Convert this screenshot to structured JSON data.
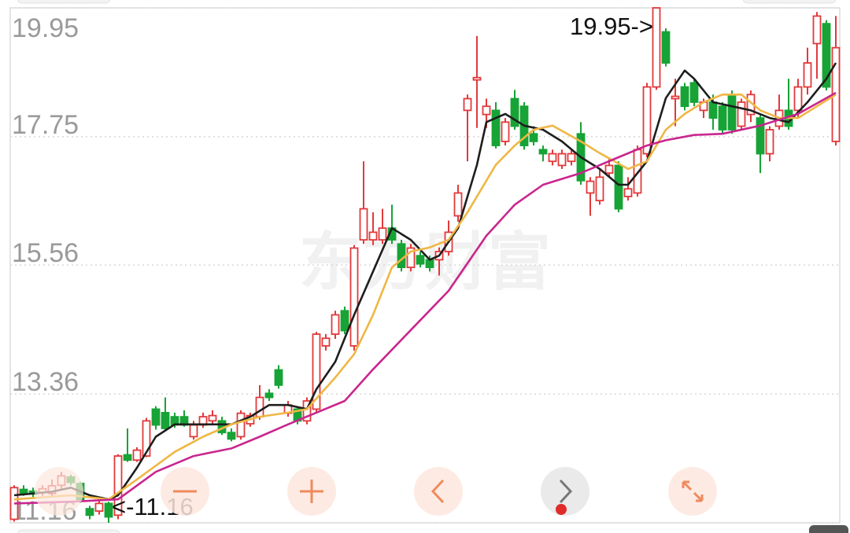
{
  "chart_data": {
    "type": "candlestick",
    "watermark": "东方财富",
    "ylim": [
      11.16,
      19.95
    ],
    "yticks": [
      19.95,
      17.75,
      15.56,
      13.36,
      11.16
    ],
    "grid": true,
    "up_color": "#e2393b",
    "down_color": "#17a336",
    "ohlc": [
      [
        11.22,
        11.8,
        11.18,
        11.76
      ],
      [
        11.73,
        11.8,
        11.62,
        11.66
      ],
      [
        11.7,
        11.76,
        11.6,
        11.65
      ],
      [
        11.68,
        11.8,
        11.62,
        11.74
      ],
      [
        11.66,
        11.9,
        11.6,
        11.79
      ],
      [
        11.8,
        12.03,
        11.74,
        11.96
      ],
      [
        11.94,
        11.98,
        11.8,
        11.85
      ],
      [
        11.83,
        11.86,
        11.5,
        11.56
      ],
      [
        11.4,
        11.45,
        11.22,
        11.29
      ],
      [
        11.36,
        11.56,
        11.3,
        11.49
      ],
      [
        11.49,
        11.52,
        11.16,
        11.26
      ],
      [
        11.29,
        12.33,
        11.22,
        12.3
      ],
      [
        12.32,
        12.77,
        12.2,
        12.23
      ],
      [
        12.23,
        12.45,
        12.2,
        12.4
      ],
      [
        12.3,
        12.95,
        12.28,
        12.9
      ],
      [
        13.1,
        13.15,
        12.75,
        12.83
      ],
      [
        13.04,
        13.3,
        12.72,
        12.77
      ],
      [
        12.97,
        13.04,
        12.78,
        12.83
      ],
      [
        12.97,
        13.08,
        12.8,
        12.83
      ],
      [
        12.63,
        12.9,
        12.58,
        12.83
      ],
      [
        12.83,
        13.04,
        12.78,
        12.97
      ],
      [
        12.9,
        13.08,
        12.85,
        12.99
      ],
      [
        12.9,
        12.97,
        12.66,
        12.7
      ],
      [
        12.7,
        12.77,
        12.55,
        12.59
      ],
      [
        12.63,
        13.08,
        12.58,
        13.03
      ],
      [
        12.85,
        13.04,
        12.8,
        12.99
      ],
      [
        12.97,
        13.51,
        12.92,
        13.3
      ],
      [
        13.37,
        13.44,
        13.24,
        13.3
      ],
      [
        13.77,
        13.85,
        13.45,
        13.51
      ],
      [
        13.03,
        13.24,
        12.97,
        13.17
      ],
      [
        13.1,
        13.15,
        12.84,
        12.9
      ],
      [
        12.9,
        13.3,
        12.84,
        13.24
      ],
      [
        13.1,
        14.42,
        13.04,
        14.38
      ],
      [
        14.18,
        14.38,
        14.1,
        14.31
      ],
      [
        14.38,
        14.78,
        14.3,
        14.71
      ],
      [
        14.78,
        14.85,
        14.38,
        14.44
      ],
      [
        14.18,
        15.9,
        14.1,
        15.85
      ],
      [
        15.99,
        17.33,
        15.92,
        16.52
      ],
      [
        15.99,
        16.46,
        15.9,
        16.12
      ],
      [
        15.99,
        16.52,
        15.92,
        16.19
      ],
      [
        16.19,
        16.59,
        15.92,
        15.99
      ],
      [
        15.92,
        15.99,
        15.45,
        15.52
      ],
      [
        15.52,
        15.92,
        15.45,
        15.85
      ],
      [
        15.72,
        15.79,
        15.52,
        15.58
      ],
      [
        15.65,
        15.72,
        15.45,
        15.52
      ],
      [
        15.65,
        15.86,
        15.38,
        15.79
      ],
      [
        15.79,
        16.32,
        15.72,
        16.12
      ],
      [
        16.4,
        16.93,
        16.3,
        16.79
      ],
      [
        18.2,
        18.47,
        17.33,
        18.4
      ],
      [
        18.72,
        19.47,
        17.9,
        18.76
      ],
      [
        18.13,
        18.4,
        17.9,
        18.27
      ],
      [
        18.2,
        18.34,
        17.55,
        17.6
      ],
      [
        17.67,
        18.07,
        17.6,
        18.0
      ],
      [
        18.4,
        18.55,
        17.87,
        17.93
      ],
      [
        18.27,
        18.34,
        17.53,
        17.6
      ],
      [
        17.8,
        17.93,
        17.6,
        17.67
      ],
      [
        17.53,
        17.6,
        17.33,
        17.46
      ],
      [
        17.33,
        17.53,
        17.26,
        17.46
      ],
      [
        17.26,
        17.53,
        17.2,
        17.46
      ],
      [
        17.33,
        17.53,
        17.26,
        17.46
      ],
      [
        17.8,
        18.0,
        16.93,
        17.0
      ],
      [
        16.79,
        17.06,
        16.4,
        16.99
      ],
      [
        16.66,
        17.2,
        16.59,
        17.06
      ],
      [
        17.13,
        17.4,
        17.06,
        17.26
      ],
      [
        17.26,
        17.33,
        16.46,
        16.52
      ],
      [
        16.73,
        17.06,
        16.66,
        16.86
      ],
      [
        16.79,
        17.6,
        16.73,
        17.53
      ],
      [
        17.46,
        18.67,
        17.4,
        18.6
      ],
      [
        18.6,
        19.95,
        18.55,
        19.95
      ],
      [
        19.54,
        19.6,
        18.95,
        19.01
      ],
      [
        18.4,
        18.74,
        17.93,
        18.44
      ],
      [
        18.6,
        18.67,
        18.2,
        18.27
      ],
      [
        18.67,
        18.74,
        18.27,
        18.34
      ],
      [
        18.2,
        18.4,
        18.07,
        18.34
      ],
      [
        18.34,
        18.47,
        17.87,
        18.07
      ],
      [
        18.27,
        18.34,
        17.8,
        17.87
      ],
      [
        18.47,
        18.54,
        17.8,
        17.87
      ],
      [
        17.93,
        18.4,
        17.87,
        18.34
      ],
      [
        18.13,
        18.54,
        18.0,
        18.47
      ],
      [
        18.07,
        18.13,
        17.13,
        17.46
      ],
      [
        17.46,
        17.93,
        17.33,
        17.87
      ],
      [
        17.93,
        18.47,
        17.87,
        18.2
      ],
      [
        18.2,
        18.74,
        17.87,
        17.93
      ],
      [
        18.2,
        18.74,
        18.07,
        18.6
      ],
      [
        18.6,
        19.27,
        18.47,
        19.01
      ],
      [
        19.34,
        19.88,
        18.74,
        19.81
      ],
      [
        19.68,
        19.74,
        18.54,
        18.6
      ],
      [
        17.67,
        19.81,
        17.6,
        19.27
      ]
    ],
    "series": [
      {
        "color": "#1e1e1e",
        "x": [
          0,
          4,
          6,
          8,
          10,
          11,
          13,
          15,
          17,
          19,
          21,
          23,
          25,
          27,
          29,
          31,
          32,
          34,
          36,
          38,
          40,
          42,
          44,
          45,
          47,
          49,
          50,
          52,
          54,
          56,
          58,
          60,
          62,
          64,
          65,
          67,
          69,
          71,
          72,
          74,
          76,
          78,
          80,
          82,
          84,
          86,
          87
        ],
        "values": [
          11.63,
          11.69,
          11.76,
          11.63,
          11.56,
          11.63,
          12.1,
          12.63,
          12.84,
          12.84,
          12.84,
          12.84,
          12.97,
          13.17,
          13.17,
          13.1,
          13.44,
          13.91,
          14.71,
          15.45,
          16.19,
          15.99,
          15.65,
          15.72,
          16.19,
          17.27,
          18.0,
          18.14,
          17.94,
          17.87,
          17.67,
          17.4,
          17.2,
          16.93,
          16.93,
          17.33,
          18.41,
          18.88,
          18.74,
          18.34,
          18.27,
          18.2,
          18.07,
          18.0,
          18.34,
          18.74,
          19.01
        ]
      },
      {
        "color": "#efb744",
        "x": [
          0,
          6,
          10,
          13,
          17,
          20,
          23,
          26,
          29,
          31,
          34,
          36,
          38,
          40,
          42,
          44,
          46,
          48,
          51,
          53,
          55,
          57,
          60,
          62,
          65,
          67,
          69,
          71,
          73,
          75,
          77,
          79,
          81,
          83,
          85,
          87
        ],
        "values": [
          11.56,
          11.63,
          11.56,
          11.9,
          12.37,
          12.63,
          12.84,
          12.97,
          13.04,
          13.1,
          13.64,
          14.04,
          14.71,
          15.52,
          15.79,
          15.86,
          15.99,
          16.46,
          17.27,
          17.6,
          17.87,
          17.94,
          17.67,
          17.47,
          17.2,
          17.33,
          17.87,
          18.14,
          18.34,
          18.47,
          18.47,
          18.2,
          18.07,
          18.07,
          18.27,
          18.47
        ]
      },
      {
        "color": "#c9268e",
        "x": [
          0,
          6,
          11,
          15,
          19,
          23,
          26,
          29,
          32,
          35,
          38,
          42,
          46,
          50,
          53,
          56,
          60,
          64,
          67,
          69,
          72,
          75,
          79,
          83,
          87
        ],
        "values": [
          11.49,
          11.52,
          11.56,
          12.03,
          12.3,
          12.43,
          12.63,
          12.84,
          13.04,
          13.24,
          13.78,
          14.45,
          15.12,
          16.06,
          16.59,
          16.93,
          17.13,
          17.4,
          17.6,
          17.69,
          17.78,
          17.8,
          17.94,
          18.14,
          18.5
        ]
      }
    ],
    "annotations": [
      {
        "label": "19.95->",
        "x": 68,
        "value": 19.95
      },
      {
        "label": "<-11.16",
        "x": 10,
        "value": 11.16
      }
    ]
  }
}
